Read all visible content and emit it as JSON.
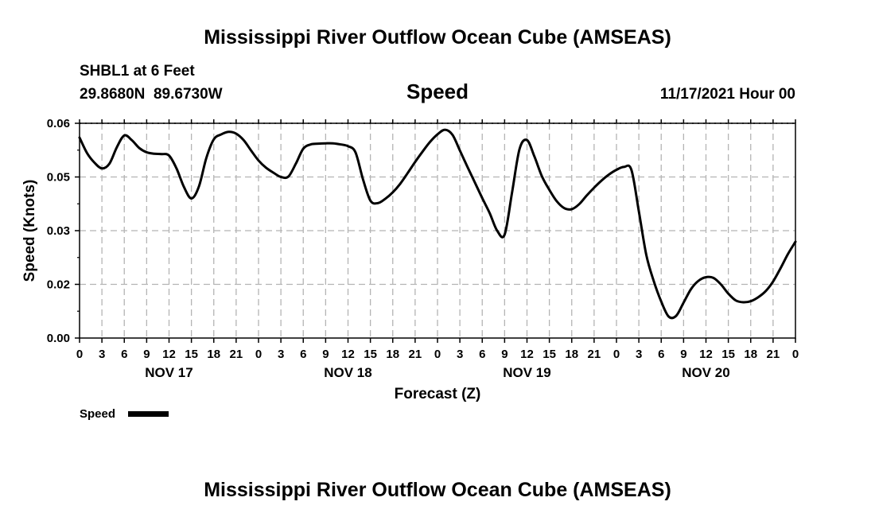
{
  "header": {
    "title": "Mississippi River Outflow Ocean Cube (AMSEAS)",
    "station": "SHBL1 at 6 Feet",
    "coords": "29.8680N  89.6730W",
    "parameter": "Speed",
    "datetime": "11/17/2021 Hour 00"
  },
  "footer": {
    "title": "Mississippi River Outflow Ocean Cube (AMSEAS)"
  },
  "legend": {
    "label": "Speed"
  },
  "colors": {
    "line": "#000000",
    "grid": "#b4b4b4",
    "background": "#ffffff"
  },
  "chart_data": {
    "type": "line",
    "title": "Speed",
    "xlabel": "Forecast (Z)",
    "ylabel": "Speed (Knots)",
    "ylim": [
      0,
      0.06
    ],
    "xlim": [
      0,
      96
    ],
    "x_unit": "hours from 11/17/2021 00Z",
    "yticks": [
      {
        "value": 0,
        "label": "0.00"
      },
      {
        "value": 0.015,
        "label": "0.02"
      },
      {
        "value": 0.03,
        "label": "0.03"
      },
      {
        "value": 0.045,
        "label": "0.05"
      },
      {
        "value": 0.06,
        "label": "0.06"
      }
    ],
    "xtick_labels": [
      "0",
      "3",
      "6",
      "9",
      "12",
      "15",
      "18",
      "21",
      "0",
      "3",
      "6",
      "9",
      "12",
      "15",
      "18",
      "21",
      "0",
      "3",
      "6",
      "9",
      "12",
      "15",
      "18",
      "21",
      "0",
      "3",
      "6",
      "9",
      "12",
      "15",
      "18",
      "21",
      "0"
    ],
    "date_labels": [
      {
        "hour": 12,
        "label": "NOV 17"
      },
      {
        "hour": 36,
        "label": "NOV 18"
      },
      {
        "hour": 60,
        "label": "NOV 19"
      },
      {
        "hour": 84,
        "label": "NOV 20"
      }
    ],
    "grid": true,
    "legend_position": "bottom-left",
    "series": [
      {
        "name": "Speed",
        "x": [
          0,
          1,
          2,
          3,
          4,
          5,
          6,
          7,
          8,
          9,
          10,
          11,
          12,
          13,
          14,
          15,
          16,
          17,
          18,
          19,
          20,
          21,
          22,
          23,
          24,
          25,
          26,
          27,
          28,
          29,
          30,
          31,
          32,
          33,
          34,
          35,
          36,
          37,
          38,
          39,
          40,
          41,
          42,
          43,
          44,
          45,
          46,
          47,
          48,
          49,
          50,
          51,
          52,
          53,
          54,
          55,
          56,
          57,
          58,
          59,
          60,
          61,
          62,
          63,
          64,
          65,
          66,
          67,
          68,
          69,
          70,
          71,
          72,
          73,
          74,
          75,
          76,
          77,
          78,
          79,
          80,
          81,
          82,
          83,
          84,
          85,
          86,
          87,
          88,
          89,
          90,
          91,
          92,
          93,
          94,
          95,
          96
        ],
        "values": [
          0.056,
          0.0517,
          0.049,
          0.0474,
          0.0487,
          0.0533,
          0.0566,
          0.0553,
          0.0531,
          0.0519,
          0.0515,
          0.0514,
          0.051,
          0.0474,
          0.0422,
          0.039,
          0.0423,
          0.0503,
          0.0555,
          0.0569,
          0.0576,
          0.0571,
          0.0553,
          0.0524,
          0.0496,
          0.0476,
          0.0462,
          0.045,
          0.0451,
          0.0487,
          0.0529,
          0.0541,
          0.0543,
          0.0544,
          0.0544,
          0.0541,
          0.0536,
          0.0519,
          0.0444,
          0.0384,
          0.0377,
          0.0389,
          0.0407,
          0.0431,
          0.0461,
          0.0492,
          0.0521,
          0.0548,
          0.0569,
          0.0582,
          0.0568,
          0.0524,
          0.0479,
          0.0435,
          0.0391,
          0.0349,
          0.03,
          0.0289,
          0.0407,
          0.0528,
          0.0553,
          0.0507,
          0.0452,
          0.0414,
          0.0382,
          0.0363,
          0.036,
          0.0374,
          0.0398,
          0.042,
          0.044,
          0.0457,
          0.047,
          0.0478,
          0.047,
          0.0354,
          0.0232,
          0.0159,
          0.0102,
          0.006,
          0.0062,
          0.0099,
          0.0137,
          0.016,
          0.017,
          0.0168,
          0.015,
          0.0124,
          0.0105,
          0.01,
          0.0103,
          0.0114,
          0.0131,
          0.0158,
          0.0195,
          0.0235,
          0.0269
        ]
      }
    ]
  }
}
